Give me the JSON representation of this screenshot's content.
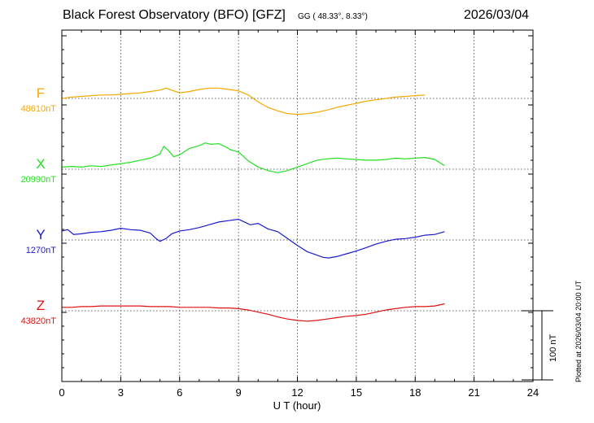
{
  "header": {
    "title": "Black Forest Observatory (BFO)  [GFZ]",
    "coords_label": "GG ( 48.33°,   8.33°)",
    "date": "2026/03/04"
  },
  "plotted_note": "Plotted at 2026/03/04 20:00 UT",
  "scale_bar_label": "100 nT",
  "chart_data": {
    "type": "line",
    "xlabel": "U T (hour)",
    "xlim": [
      0,
      24
    ],
    "xticks": [
      "0",
      "3",
      "6",
      "9",
      "12",
      "15",
      "18",
      "21",
      "24"
    ],
    "scale_bar_nT": 100,
    "grid": true,
    "series": [
      {
        "name": "F",
        "baseline_label": "48610nT",
        "baseline_nT": 48610,
        "color": "#f5a800",
        "x": [
          0,
          0.5,
          1,
          1.5,
          2,
          2.5,
          3,
          3.5,
          4,
          4.5,
          5,
          5.3,
          5.6,
          6,
          6.5,
          7,
          7.5,
          8,
          8.5,
          9,
          9.5,
          10,
          10.5,
          11,
          11.5,
          12,
          12.5,
          13,
          13.5,
          14,
          14.5,
          15,
          15.5,
          16,
          16.5,
          17,
          17.5,
          18,
          18.5
        ],
        "y": [
          48610,
          48612,
          48613,
          48614,
          48615,
          48615,
          48616,
          48617,
          48618,
          48620,
          48622,
          48625,
          48622,
          48618,
          48620,
          48623,
          48625,
          48625,
          48623,
          48621,
          48615,
          48605,
          48597,
          48592,
          48588,
          48587,
          48588,
          48590,
          48593,
          48597,
          48600,
          48603,
          48606,
          48608,
          48610,
          48612,
          48613,
          48614,
          48615
        ]
      },
      {
        "name": "X",
        "baseline_label": "20990nT",
        "baseline_nT": 20990,
        "color": "#22e022",
        "x": [
          0,
          0.5,
          1,
          1.5,
          2,
          2.5,
          3,
          3.5,
          4,
          4.5,
          5,
          5.2,
          5.4,
          5.7,
          6,
          6.5,
          7,
          7.3,
          7.6,
          8,
          8.3,
          8.6,
          9,
          9.5,
          10,
          10.5,
          11,
          11.5,
          12,
          12.5,
          13,
          13.5,
          14,
          14.5,
          15,
          15.5,
          16,
          16.5,
          17,
          17.5,
          18,
          18.5,
          19,
          19.5
        ],
        "y": [
          20993,
          20994,
          20993,
          20995,
          20994,
          20996,
          20998,
          21000,
          21003,
          21006,
          21012,
          21023,
          21018,
          21008,
          21011,
          21020,
          21024,
          21028,
          21026,
          21027,
          21023,
          21018,
          21015,
          21002,
          20993,
          20988,
          20985,
          20988,
          20993,
          20998,
          21003,
          21005,
          21006,
          21005,
          21004,
          21003,
          21003,
          21004,
          21006,
          21005,
          21006,
          21007,
          21004,
          20995
        ]
      },
      {
        "name": "Y",
        "baseline_label": "1270nT",
        "baseline_nT": 1270,
        "color": "#1a1acc",
        "x": [
          0,
          0.3,
          0.6,
          1,
          1.5,
          2,
          2.5,
          3,
          3.5,
          4,
          4.5,
          4.8,
          5,
          5.3,
          5.6,
          6,
          6.5,
          7,
          7.5,
          8,
          8.5,
          9,
          9.3,
          9.6,
          10,
          10.5,
          11,
          11.5,
          12,
          12.5,
          13,
          13.3,
          13.6,
          14,
          14.5,
          15,
          15.5,
          16,
          16.5,
          17,
          17.5,
          18,
          18.5,
          19,
          19.5
        ],
        "y": [
          1283,
          1285,
          1278,
          1279,
          1281,
          1282,
          1284,
          1287,
          1285,
          1284,
          1280,
          1272,
          1268,
          1272,
          1279,
          1283,
          1285,
          1288,
          1292,
          1296,
          1298,
          1300,
          1296,
          1292,
          1294,
          1286,
          1282,
          1272,
          1262,
          1253,
          1248,
          1245,
          1244,
          1246,
          1250,
          1254,
          1259,
          1264,
          1268,
          1271,
          1272,
          1274,
          1277,
          1278,
          1282
        ]
      },
      {
        "name": "Z",
        "baseline_label": "43820nT",
        "baseline_nT": 43820,
        "color": "#dd1111",
        "x": [
          0,
          0.5,
          1,
          1.5,
          2,
          2.5,
          3,
          3.5,
          4,
          4.5,
          5,
          5.5,
          6,
          6.5,
          7,
          7.5,
          8,
          8.5,
          9,
          9.5,
          10,
          10.5,
          11,
          11.5,
          12,
          12.5,
          13,
          13.5,
          14,
          14.5,
          15,
          15.5,
          16,
          16.5,
          17,
          17.5,
          18,
          18.5,
          19,
          19.5
        ],
        "y": [
          43825,
          43825,
          43826,
          43826,
          43827,
          43827,
          43827,
          43827,
          43827,
          43826,
          43826,
          43826,
          43825,
          43825,
          43825,
          43825,
          43824,
          43824,
          43823,
          43821,
          43818,
          43815,
          43811,
          43808,
          43806,
          43805,
          43806,
          43808,
          43810,
          43812,
          43813,
          43815,
          43818,
          43821,
          43823,
          43825,
          43826,
          43826,
          43827,
          43830
        ]
      }
    ]
  }
}
